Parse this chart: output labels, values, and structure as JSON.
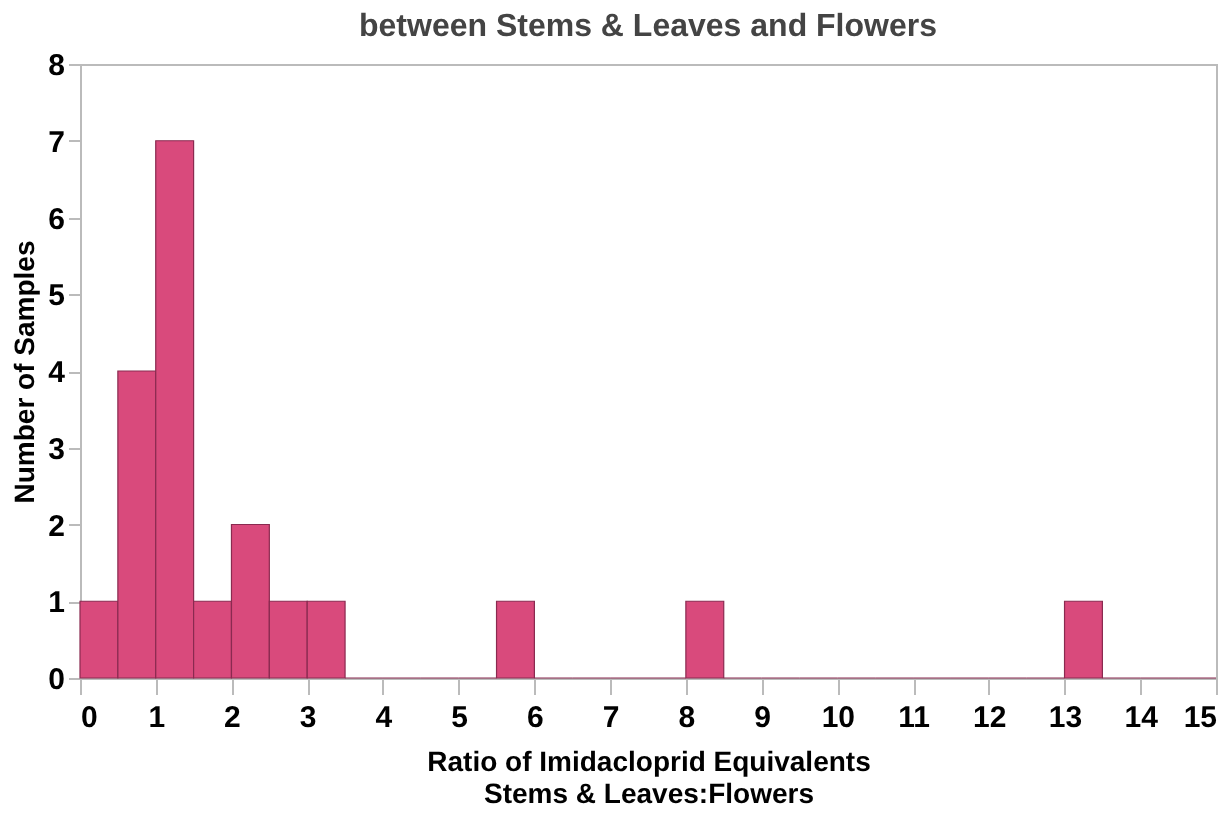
{
  "chart_data": {
    "type": "histogram",
    "title": "between Stems & Leaves and Flowers",
    "xlabel": "Ratio of Imidacloprid Equivalents\nStems & Leaves:Flowers",
    "ylabel": "Number of Samples",
    "bins": [
      0,
      0.5,
      1,
      1.5,
      2,
      2.5,
      3,
      3.5,
      4,
      4.5,
      5,
      5.5,
      6,
      6.5,
      7,
      7.5,
      8,
      8.5,
      9,
      9.5,
      10,
      10.5,
      11,
      11.5,
      12,
      12.5,
      13,
      13.5,
      14,
      14.5,
      15
    ],
    "values": [
      1,
      4,
      7,
      1,
      2,
      1,
      1,
      0,
      0,
      0,
      0,
      1,
      0,
      0,
      0,
      0,
      1,
      0,
      0,
      0,
      0,
      0,
      0,
      0,
      0,
      0,
      1,
      0,
      0,
      0
    ],
    "color": "#d94a7c",
    "xlim": [
      0,
      15
    ],
    "xticks": [
      0,
      1,
      2,
      3,
      4,
      5,
      6,
      7,
      8,
      9,
      10,
      11,
      12,
      13,
      14,
      15
    ],
    "ylim": [
      0,
      8
    ],
    "yticks": [
      0,
      1,
      2,
      3,
      4,
      5,
      6,
      7,
      8
    ],
    "grid": false
  }
}
